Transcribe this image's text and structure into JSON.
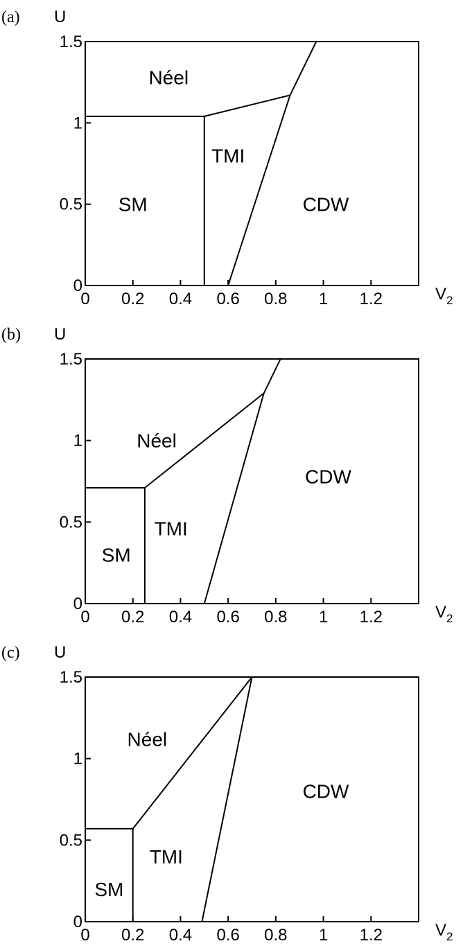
{
  "chart_data": [
    {
      "type": "line",
      "panel_label": "(a)",
      "xlabel": "V",
      "xlabel_sub": "2",
      "ylabel": "U",
      "xlim": [
        0,
        1.4
      ],
      "ylim": [
        0,
        1.5
      ],
      "xticks": [
        "0",
        "0.2",
        "0.4",
        "0.6",
        "0.8",
        "1",
        "1.2"
      ],
      "yticks": [
        "0",
        "0.5",
        "1",
        "1.5"
      ],
      "boundaries": [
        {
          "points": [
            [
              0,
              1.04
            ],
            [
              0.5,
              1.04
            ]
          ]
        },
        {
          "points": [
            [
              0.5,
              0
            ],
            [
              0.5,
              1.04
            ]
          ]
        },
        {
          "points": [
            [
              0.5,
              1.04
            ],
            [
              0.86,
              1.17
            ]
          ]
        },
        {
          "points": [
            [
              0.6,
              0
            ],
            [
              0.86,
              1.17
            ],
            [
              0.97,
              1.5
            ]
          ]
        }
      ],
      "regions": [
        {
          "label": "Néel",
          "x": 0.35,
          "y": 1.28
        },
        {
          "label": "SM",
          "x": 0.2,
          "y": 0.5
        },
        {
          "label": "TMI",
          "x": 0.6,
          "y": 0.8
        },
        {
          "label": "CDW",
          "x": 1.01,
          "y": 0.5
        }
      ]
    },
    {
      "type": "line",
      "panel_label": "(b)",
      "xlabel": "V",
      "xlabel_sub": "2",
      "ylabel": "U",
      "xlim": [
        0,
        1.4
      ],
      "ylim": [
        0,
        1.5
      ],
      "xticks": [
        "0",
        "0.2",
        "0.4",
        "0.6",
        "0.8",
        "1",
        "1.2"
      ],
      "yticks": [
        "0",
        "0.5",
        "1",
        "1.5"
      ],
      "boundaries": [
        {
          "points": [
            [
              0,
              0.71
            ],
            [
              0.25,
              0.71
            ]
          ]
        },
        {
          "points": [
            [
              0.25,
              0
            ],
            [
              0.25,
              0.71
            ]
          ]
        },
        {
          "points": [
            [
              0.25,
              0.71
            ],
            [
              0.75,
              1.29
            ]
          ]
        },
        {
          "points": [
            [
              0.5,
              0
            ],
            [
              0.75,
              1.29
            ],
            [
              0.82,
              1.5
            ]
          ]
        }
      ],
      "regions": [
        {
          "label": "Néel",
          "x": 0.3,
          "y": 1.0
        },
        {
          "label": "SM",
          "x": 0.13,
          "y": 0.3
        },
        {
          "label": "TMI",
          "x": 0.36,
          "y": 0.46
        },
        {
          "label": "CDW",
          "x": 1.02,
          "y": 0.78
        }
      ]
    },
    {
      "type": "line",
      "panel_label": "(c)",
      "xlabel": "V",
      "xlabel_sub": "2",
      "ylabel": "U",
      "xlim": [
        0,
        1.4
      ],
      "ylim": [
        0,
        1.5
      ],
      "xticks": [
        "0",
        "0.2",
        "0.4",
        "0.6",
        "0.8",
        "1",
        "1.2"
      ],
      "yticks": [
        "0",
        "0.5",
        "1",
        "1.5"
      ],
      "boundaries": [
        {
          "points": [
            [
              0,
              0.57
            ],
            [
              0.2,
              0.57
            ]
          ]
        },
        {
          "points": [
            [
              0.2,
              0
            ],
            [
              0.2,
              0.57
            ]
          ]
        },
        {
          "points": [
            [
              0.2,
              0.57
            ],
            [
              0.7,
              1.5
            ]
          ]
        },
        {
          "points": [
            [
              0.49,
              0
            ],
            [
              0.7,
              1.5
            ]
          ]
        }
      ],
      "regions": [
        {
          "label": "Néel",
          "x": 0.26,
          "y": 1.12
        },
        {
          "label": "SM",
          "x": 0.1,
          "y": 0.2
        },
        {
          "label": "TMI",
          "x": 0.34,
          "y": 0.4
        },
        {
          "label": "CDW",
          "x": 1.01,
          "y": 0.8
        }
      ]
    }
  ]
}
